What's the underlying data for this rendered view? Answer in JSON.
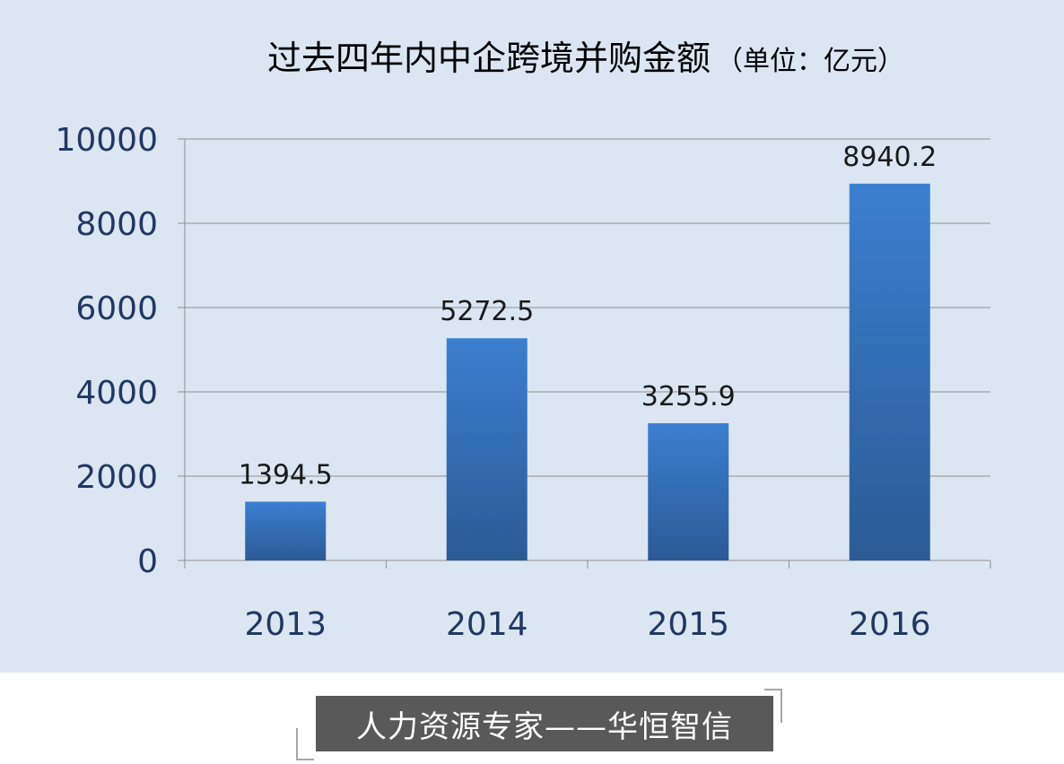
{
  "chart_data": {
    "type": "bar",
    "title": "过去四年内中企跨境并购金额",
    "unit_label": "（单位：亿元）",
    "categories": [
      "2013",
      "2014",
      "2015",
      "2016"
    ],
    "values": [
      1394.5,
      5272.5,
      3255.9,
      8940.2
    ],
    "data_labels": [
      "1394.5",
      "5272.5",
      "3255.9",
      "8940.2"
    ],
    "y_ticks": [
      "0",
      "2000",
      "4000",
      "6000",
      "8000",
      "10000"
    ],
    "ylim": [
      0,
      10000
    ],
    "grid": true,
    "legend": "none",
    "colors": {
      "bar_top": "#3b7fd0",
      "bar_bottom": "#2b5a96",
      "axis_text": "#1f3864",
      "background": "#dce6f2",
      "grid": "#8e8e8e"
    }
  },
  "banner": {
    "text": "人力资源专家——华恒智信"
  }
}
